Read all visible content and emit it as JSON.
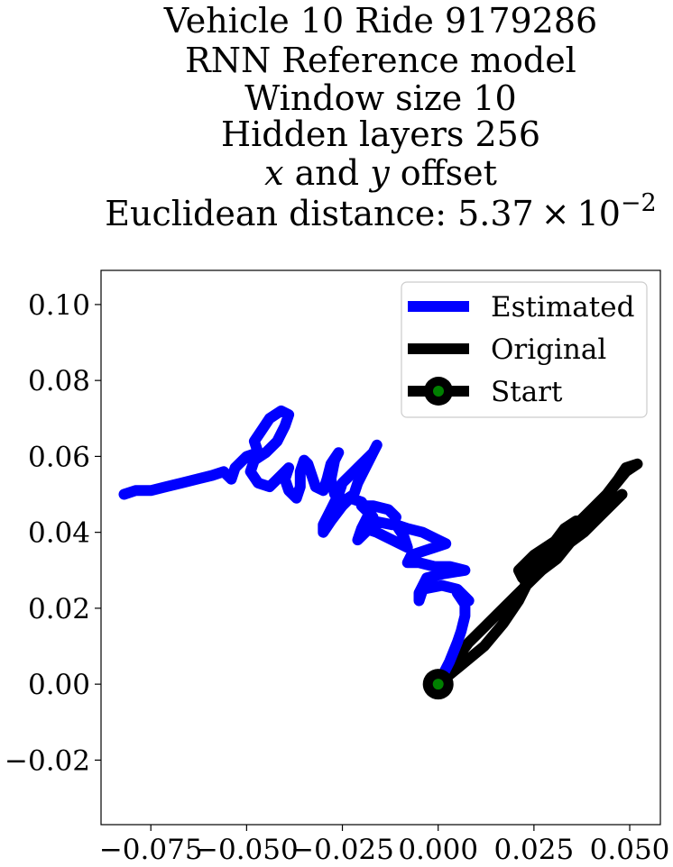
{
  "chart_data": {
    "type": "line",
    "title_lines": [
      "Vehicle 10 Ride 9179286",
      "RNN Reference model",
      "Window size 10",
      "Hidden layers 256"
    ],
    "title_offset_line": {
      "x_var": "x",
      "middle": " and ",
      "y_var": "y",
      "suffix": " offset"
    },
    "title_distance_line": {
      "prefix": "Euclidean distance: 5.37",
      "times": "×",
      "base": "10",
      "exponent": "−2"
    },
    "xlim": [
      -0.088,
      0.058
    ],
    "ylim": [
      -0.037,
      0.109
    ],
    "x_ticks": [
      -0.075,
      -0.05,
      -0.025,
      0.0,
      0.025,
      0.05
    ],
    "x_tick_labels": [
      "−0.075",
      "−0.050",
      "−0.025",
      "0.000",
      "0.025",
      "0.050"
    ],
    "y_ticks": [
      -0.02,
      0.0,
      0.02,
      0.04,
      0.06,
      0.08,
      0.1
    ],
    "y_tick_labels": [
      "−0.02",
      "0.00",
      "0.02",
      "0.04",
      "0.06",
      "0.08",
      "0.10"
    ],
    "grid": false,
    "legend_position": "top-right",
    "series": [
      {
        "name": "Estimated",
        "color": "#0000ff",
        "points": [
          [
            0.0,
            0.0
          ],
          [
            0.003,
            0.006
          ],
          [
            0.005,
            0.011
          ],
          [
            0.006,
            0.014
          ],
          [
            0.007,
            0.018
          ],
          [
            0.007,
            0.021
          ],
          [
            0.005,
            0.024
          ],
          [
            0.008,
            0.022
          ],
          [
            0.005,
            0.025
          ],
          [
            0.001,
            0.026
          ],
          [
            -0.004,
            0.025
          ],
          [
            -0.005,
            0.022
          ],
          [
            -0.005,
            0.024
          ],
          [
            -0.003,
            0.028
          ],
          [
            0.001,
            0.029
          ],
          [
            0.007,
            0.03
          ],
          [
            0.003,
            0.031
          ],
          [
            -0.001,
            0.031
          ],
          [
            -0.005,
            0.032
          ],
          [
            -0.008,
            0.032
          ],
          [
            -0.007,
            0.034
          ],
          [
            -0.004,
            0.035
          ],
          [
            -0.001,
            0.036
          ],
          [
            0.002,
            0.037
          ],
          [
            0.0,
            0.038
          ],
          [
            -0.004,
            0.04
          ],
          [
            -0.008,
            0.041
          ],
          [
            -0.011,
            0.042
          ],
          [
            -0.009,
            0.039
          ],
          [
            -0.008,
            0.036
          ],
          [
            -0.012,
            0.038
          ],
          [
            -0.016,
            0.04
          ],
          [
            -0.019,
            0.041
          ],
          [
            -0.017,
            0.043
          ],
          [
            -0.012,
            0.042
          ],
          [
            -0.011,
            0.044
          ],
          [
            -0.013,
            0.046
          ],
          [
            -0.017,
            0.047
          ],
          [
            -0.02,
            0.047
          ],
          [
            -0.017,
            0.044
          ],
          [
            -0.019,
            0.04
          ],
          [
            -0.021,
            0.038
          ],
          [
            -0.02,
            0.041
          ],
          [
            -0.018,
            0.045
          ],
          [
            -0.02,
            0.048
          ],
          [
            -0.023,
            0.049
          ],
          [
            -0.025,
            0.047
          ],
          [
            -0.028,
            0.043
          ],
          [
            -0.03,
            0.04
          ],
          [
            -0.03,
            0.042
          ],
          [
            -0.028,
            0.046
          ],
          [
            -0.026,
            0.05
          ],
          [
            -0.025,
            0.053
          ],
          [
            -0.023,
            0.055
          ],
          [
            -0.02,
            0.058
          ],
          [
            -0.017,
            0.061
          ],
          [
            -0.016,
            0.063
          ],
          [
            -0.017,
            0.061
          ],
          [
            -0.019,
            0.057
          ],
          [
            -0.021,
            0.053
          ],
          [
            -0.022,
            0.05
          ],
          [
            -0.025,
            0.048
          ],
          [
            -0.027,
            0.05
          ],
          [
            -0.028,
            0.054
          ],
          [
            -0.027,
            0.059
          ],
          [
            -0.026,
            0.061
          ],
          [
            -0.028,
            0.058
          ],
          [
            -0.029,
            0.054
          ],
          [
            -0.03,
            0.051
          ],
          [
            -0.032,
            0.052
          ],
          [
            -0.033,
            0.055
          ],
          [
            -0.034,
            0.058
          ],
          [
            -0.035,
            0.059
          ],
          [
            -0.036,
            0.056
          ],
          [
            -0.036,
            0.052
          ],
          [
            -0.037,
            0.049
          ],
          [
            -0.039,
            0.051
          ],
          [
            -0.04,
            0.054
          ],
          [
            -0.039,
            0.057
          ],
          [
            -0.041,
            0.055
          ],
          [
            -0.044,
            0.052
          ],
          [
            -0.047,
            0.053
          ],
          [
            -0.049,
            0.056
          ],
          [
            -0.048,
            0.059
          ],
          [
            -0.045,
            0.061
          ],
          [
            -0.042,
            0.064
          ],
          [
            -0.04,
            0.068
          ],
          [
            -0.039,
            0.071
          ],
          [
            -0.041,
            0.072
          ],
          [
            -0.044,
            0.07
          ],
          [
            -0.046,
            0.067
          ],
          [
            -0.048,
            0.064
          ],
          [
            -0.047,
            0.061
          ],
          [
            -0.05,
            0.06
          ],
          [
            -0.053,
            0.057
          ],
          [
            -0.054,
            0.054
          ],
          [
            -0.056,
            0.056
          ],
          [
            -0.059,
            0.055
          ],
          [
            -0.063,
            0.054
          ],
          [
            -0.067,
            0.053
          ],
          [
            -0.071,
            0.052
          ],
          [
            -0.075,
            0.051
          ],
          [
            -0.079,
            0.051
          ],
          [
            -0.082,
            0.05
          ]
        ]
      },
      {
        "name": "Original",
        "color": "#000000",
        "points": [
          [
            0.0,
            0.0
          ],
          [
            0.006,
            0.005
          ],
          [
            0.012,
            0.01
          ],
          [
            0.017,
            0.016
          ],
          [
            0.021,
            0.022
          ],
          [
            0.023,
            0.026
          ],
          [
            0.022,
            0.029
          ],
          [
            0.026,
            0.032
          ],
          [
            0.03,
            0.037
          ],
          [
            0.033,
            0.041
          ],
          [
            0.036,
            0.043
          ],
          [
            0.033,
            0.039
          ],
          [
            0.029,
            0.035
          ],
          [
            0.025,
            0.031
          ],
          [
            0.022,
            0.028
          ],
          [
            0.021,
            0.03
          ],
          [
            0.025,
            0.034
          ],
          [
            0.031,
            0.038
          ],
          [
            0.036,
            0.042
          ],
          [
            0.04,
            0.046
          ],
          [
            0.044,
            0.05
          ],
          [
            0.047,
            0.054
          ],
          [
            0.049,
            0.057
          ],
          [
            0.052,
            0.058
          ],
          [
            0.049,
            0.056
          ],
          [
            0.045,
            0.051
          ],
          [
            0.041,
            0.046
          ],
          [
            0.038,
            0.042
          ],
          [
            0.035,
            0.038
          ],
          [
            0.031,
            0.033
          ],
          [
            0.027,
            0.03
          ],
          [
            0.024,
            0.027
          ],
          [
            0.026,
            0.03
          ],
          [
            0.03,
            0.034
          ],
          [
            0.034,
            0.037
          ],
          [
            0.038,
            0.04
          ],
          [
            0.042,
            0.044
          ],
          [
            0.046,
            0.048
          ],
          [
            0.048,
            0.05
          ],
          [
            0.044,
            0.047
          ],
          [
            0.04,
            0.043
          ],
          [
            0.036,
            0.039
          ],
          [
            0.032,
            0.035
          ],
          [
            0.028,
            0.031
          ],
          [
            0.024,
            0.027
          ],
          [
            0.02,
            0.023
          ],
          [
            0.016,
            0.019
          ],
          [
            0.012,
            0.015
          ],
          [
            0.008,
            0.011
          ],
          [
            0.005,
            0.007
          ],
          [
            0.002,
            0.003
          ],
          [
            0.0,
            0.0
          ]
        ]
      }
    ],
    "start_point": {
      "name": "Start",
      "x": 0.0,
      "y": 0.0,
      "outer_color": "#000000",
      "inner_color": "#008000"
    }
  }
}
